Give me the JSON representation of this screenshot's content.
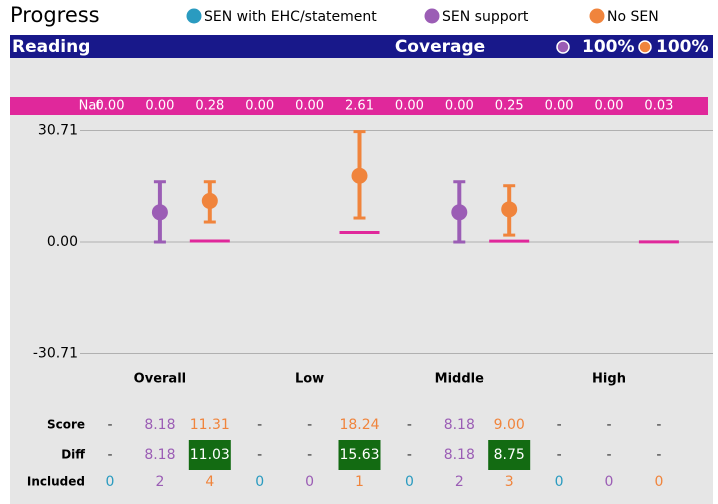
{
  "header": {
    "title": "Progress",
    "subject": "Reading",
    "coverage_label": "Coverage",
    "coverage": [
      {
        "value": 100,
        "label": "100%",
        "color": "#9b5db5"
      },
      {
        "value": 100,
        "label": "100%",
        "color": "#f0843c"
      }
    ]
  },
  "chart_data": {
    "type": "errorbar",
    "categories": [
      "Overall",
      "Low",
      "Middle",
      "High"
    ],
    "ylim": [
      -32.5,
      32.5
    ],
    "yticks": [
      {
        "value": 30.71,
        "label": "30.71"
      },
      {
        "value": 0,
        "label": "0.00"
      },
      {
        "value": -30.71,
        "label": "-30.71"
      }
    ],
    "grid": true,
    "national_label": "Nat",
    "national_color": "#e0289b",
    "row_labels": {
      "score": "Score",
      "diff": "Diff",
      "included": "Included"
    },
    "series": [
      {
        "name": "SEN with EHC/statement",
        "color": "#2a9bc0",
        "values": [
          null,
          null,
          null,
          null
        ],
        "value_labels": [
          "-",
          "-",
          "-",
          "-"
        ],
        "error_low": [
          null,
          null,
          null,
          null
        ],
        "error_high": [
          null,
          null,
          null,
          null
        ],
        "diff": [
          null,
          null,
          null,
          null
        ],
        "diff_labels": [
          "-",
          "-",
          "-",
          "-"
        ],
        "included": [
          0,
          0,
          0,
          0
        ],
        "national": [
          0,
          0,
          0,
          0
        ],
        "national_labels": [
          "0.00",
          "0.00",
          "0.00",
          "0.00"
        ]
      },
      {
        "name": "SEN support",
        "color": "#9b5db5",
        "values": [
          8.18,
          null,
          8.18,
          null
        ],
        "value_labels": [
          "8.18",
          "-",
          "8.18",
          "-"
        ],
        "error_low": [
          0,
          null,
          0,
          null
        ],
        "error_high": [
          16.6,
          null,
          16.6,
          null
        ],
        "diff": [
          8.18,
          null,
          8.18,
          null
        ],
        "diff_labels": [
          "8.18",
          "-",
          "8.18",
          "-"
        ],
        "included": [
          2,
          0,
          2,
          0
        ],
        "national": [
          0,
          0,
          0,
          0
        ],
        "national_labels": [
          "0.00",
          "0.00",
          "0.00",
          "0.00"
        ]
      },
      {
        "name": "No SEN",
        "color": "#f0843c",
        "show_national": true,
        "diff_highlight": "#136b12",
        "values": [
          11.31,
          18.24,
          9.0,
          null
        ],
        "value_labels": [
          "11.31",
          "18.24",
          "9.00",
          "-"
        ],
        "error_low": [
          5.5,
          6.6,
          1.9,
          null
        ],
        "error_high": [
          16.6,
          30.4,
          15.5,
          null
        ],
        "diff": [
          11.03,
          15.63,
          8.75,
          null
        ],
        "diff_labels": [
          "11.03",
          "15.63",
          "8.75",
          "-"
        ],
        "included": [
          4,
          1,
          3,
          0
        ],
        "national": [
          0.28,
          2.61,
          0.25,
          0.03
        ],
        "national_labels": [
          "0.28",
          "2.61",
          "0.25",
          "0.03"
        ]
      }
    ]
  }
}
